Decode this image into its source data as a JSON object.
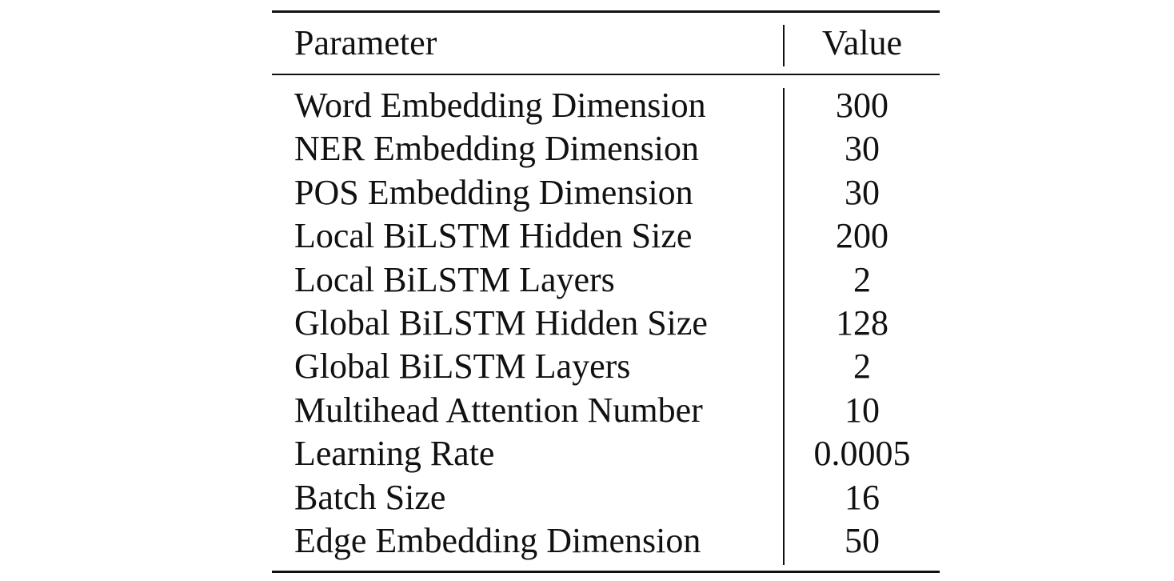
{
  "table": {
    "headers": {
      "parameter": "Parameter",
      "value": "Value"
    },
    "rows": [
      {
        "parameter": "Word Embedding Dimension",
        "value": "300"
      },
      {
        "parameter": "NER Embedding Dimension",
        "value": "30"
      },
      {
        "parameter": "POS Embedding Dimension",
        "value": "30"
      },
      {
        "parameter": "Local BiLSTM Hidden Size",
        "value": "200"
      },
      {
        "parameter": "Local BiLSTM Layers",
        "value": "2"
      },
      {
        "parameter": "Global BiLSTM Hidden Size",
        "value": "128"
      },
      {
        "parameter": "Global BiLSTM Layers",
        "value": "2"
      },
      {
        "parameter": "Multihead Attention Number",
        "value": "10"
      },
      {
        "parameter": "Learning Rate",
        "value": "0.0005"
      },
      {
        "parameter": "Batch Size",
        "value": "16"
      },
      {
        "parameter": "Edge Embedding Dimension",
        "value": "50"
      }
    ]
  }
}
